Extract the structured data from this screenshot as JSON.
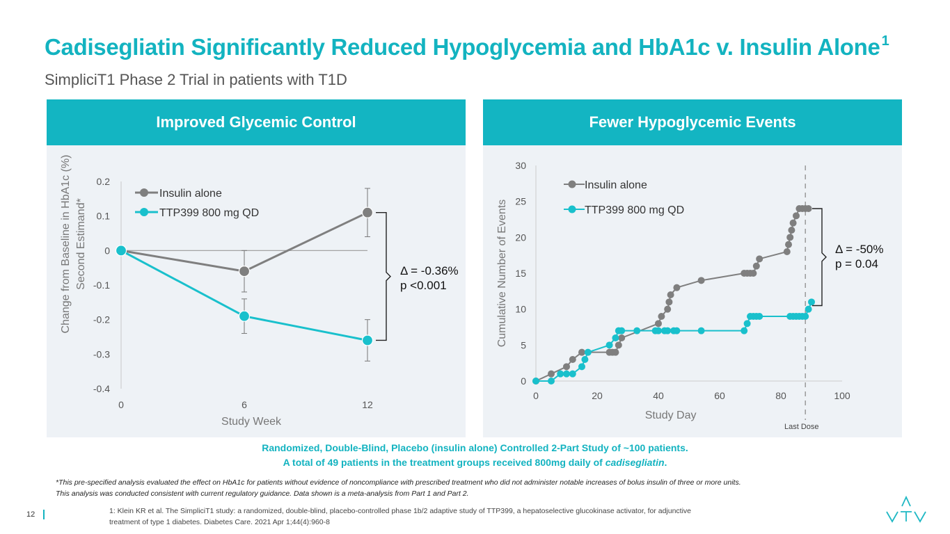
{
  "header": {
    "title": "Cadisegliatin Significantly Reduced Hypoglycemia and HbA1c v. Insulin Alone",
    "title_sup": "1",
    "subtitle": "SimpliciT1 Phase 2 Trial in patients with T1D"
  },
  "panels": {
    "left": {
      "heading": "Improved Glycemic Control",
      "annotation_line1": "Δ = -0.36%",
      "annotation_line2": "p <0.001"
    },
    "right": {
      "heading": "Fewer Hypoglycemic Events",
      "annotation_line1": "Δ = -50%",
      "annotation_line2": "p = 0.04",
      "last_dose_label": "Last Dose"
    }
  },
  "colors": {
    "accent": "#13b5c2",
    "grey_series": "#7f7f7f",
    "teal_series": "#19c0cc"
  },
  "chart_data": [
    {
      "type": "line",
      "xlabel": "Study Week",
      "ylabel": "Change from Baseline in HbA1c (%) Second Estimand*",
      "xticks": [
        0,
        6,
        12
      ],
      "xtick_labels": [
        "0",
        "6",
        "12"
      ],
      "yticks": [
        0.2,
        0.1,
        0,
        -0.1,
        -0.2,
        -0.3,
        -0.4
      ],
      "ytick_labels": [
        "0.2",
        "0.1",
        "0",
        "-0.1",
        "-0.2",
        "-0.3",
        "-0.4"
      ],
      "ylim": [
        -0.4,
        0.2
      ],
      "xlim": [
        0,
        12
      ],
      "legend": [
        "Insulin alone",
        "TTP399 800 mg QD"
      ],
      "series": [
        {
          "name": "Insulin alone",
          "x": [
            0,
            6,
            12
          ],
          "values": [
            0,
            -0.06,
            0.11
          ],
          "err": [
            0,
            0.06,
            0.07
          ]
        },
        {
          "name": "TTP399 800 mg QD",
          "x": [
            0,
            6,
            12
          ],
          "values": [
            0,
            -0.19,
            -0.26
          ],
          "err": [
            0,
            0.05,
            0.06
          ]
        }
      ]
    },
    {
      "type": "line",
      "xlabel": "Study Day",
      "ylabel": "Cumulative Number of Events",
      "xticks": [
        0,
        20,
        40,
        60,
        80,
        100
      ],
      "xtick_labels": [
        "0",
        "20",
        "40",
        "60",
        "80",
        "100"
      ],
      "yticks": [
        0,
        5,
        10,
        15,
        20,
        25,
        30
      ],
      "ytick_labels": [
        "0",
        "5",
        "10",
        "15",
        "20",
        "25",
        "30"
      ],
      "ylim": [
        0,
        30
      ],
      "xlim": [
        0,
        100
      ],
      "last_dose_day": 88,
      "legend": [
        "Insulin alone",
        "TTP399 800 mg QD"
      ],
      "series": [
        {
          "name": "Insulin alone",
          "x": [
            0,
            5,
            10,
            12,
            15,
            24,
            25,
            26,
            27,
            28,
            40,
            41,
            43,
            43.5,
            44,
            46,
            54,
            68,
            69,
            70,
            71,
            72,
            73,
            82,
            82.5,
            83,
            83.5,
            84,
            85,
            86,
            87,
            88,
            89
          ],
          "values": [
            0,
            1,
            2,
            3,
            4,
            4,
            4,
            4,
            5,
            6,
            8,
            9,
            10,
            11,
            12,
            13,
            14,
            15,
            15,
            15,
            15,
            16,
            17,
            18,
            19,
            20,
            21,
            22,
            23,
            24,
            24,
            24,
            24
          ]
        },
        {
          "name": "TTP399 800 mg QD",
          "x": [
            0,
            5,
            8,
            10,
            12,
            15,
            16,
            17,
            24,
            26,
            27,
            28,
            33,
            39,
            40,
            42,
            43,
            45,
            46,
            54,
            68,
            69,
            70,
            71,
            72,
            73,
            83,
            84,
            85,
            86,
            87,
            88,
            89,
            90
          ],
          "values": [
            0,
            0,
            1,
            1,
            1,
            2,
            3,
            4,
            5,
            6,
            7,
            7,
            7,
            7,
            7,
            7,
            7,
            7,
            7,
            7,
            7,
            8,
            9,
            9,
            9,
            9,
            9,
            9,
            9,
            9,
            9,
            9,
            10,
            11
          ]
        }
      ]
    }
  ],
  "notes": {
    "blue_line1": "Randomized, Double-Blind, Placebo (insulin alone) Controlled 2-Part Study of ~100 patients.",
    "blue_line2_pre": "A total of 49 patients in the treatment groups received 800mg daily of ",
    "blue_line2_drug": "cadisegliatin",
    "blue_line2_post": ".",
    "footnote_line1": "*This pre-specified analysis evaluated the effect on HbA1c for patients without evidence of noncompliance with prescribed treatment who did not administer notable increases of bolus insulin of three or more units.",
    "footnote_line2": "This analysis was conducted consistent with current regulatory guidance. Data shown is a meta-analysis from Part 1 and Part 2.",
    "ref_line1": "1: Klein KR et al. The SimpliciT1 study: a randomized, double-blind, placebo-controlled phase 1b/2 adaptive study of TTP399, a hepatoselective glucokinase activator, for adjunctive",
    "ref_line2": "treatment of type 1 diabetes. Diabetes Care. 2021 Apr 1;44(4):960-8"
  },
  "page_number": "12"
}
